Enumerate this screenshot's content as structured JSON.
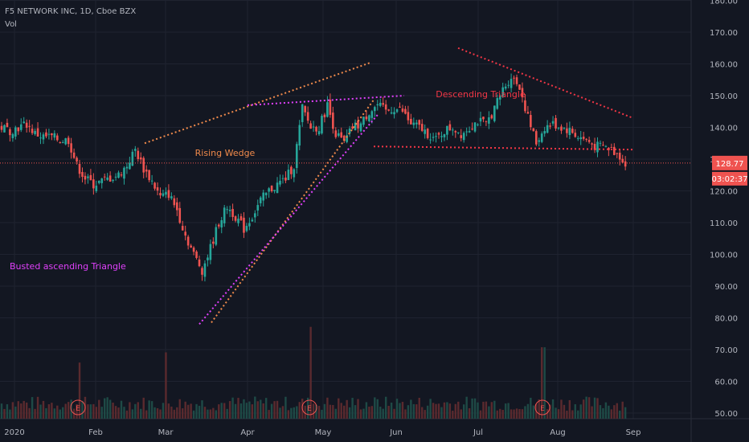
{
  "header": {
    "title": "F5 NETWORK INC, 1D, Cboe BZX",
    "volume_label": "Vol"
  },
  "price_axis": {
    "ticks": [
      "180.00",
      "170.00",
      "160.00",
      "150.00",
      "140.00",
      "130.00",
      "120.00",
      "110.00",
      "100.00",
      "90.00",
      "80.00",
      "70.00",
      "60.00",
      "50.00"
    ],
    "current_price": "128.77",
    "countdown": "03:02:37"
  },
  "time_axis": {
    "labels": [
      "2020",
      "Feb",
      "Mar",
      "Apr",
      "May",
      "Jun",
      "Jul",
      "Aug",
      "Sep"
    ]
  },
  "annotations": {
    "rising_wedge": "Rising Wedge",
    "descending_triangle": "Descending Triangle",
    "busted_triangle": "Busted ascending Triangle"
  },
  "earnings_markers": [
    "E",
    "E",
    "E"
  ],
  "colors": {
    "background": "#131722",
    "grid": "#1f2330",
    "up": "#26a69a",
    "down": "#ef5350",
    "orange": "#f08a4b",
    "magenta": "#e040fb",
    "red_line": "#f23645",
    "axis_text": "#b2b5be"
  },
  "chart_data": {
    "type": "candlestick",
    "title": "F5 NETWORK INC, 1D, Cboe BZX",
    "ylim": [
      50,
      180
    ],
    "y_ticks": [
      50,
      60,
      70,
      80,
      90,
      100,
      110,
      120,
      130,
      140,
      150,
      160,
      170,
      180
    ],
    "x_labels": [
      "2020",
      "Feb",
      "Mar",
      "Apr",
      "May",
      "Jun",
      "Jul",
      "Aug",
      "Sep"
    ],
    "last_price": 128.77,
    "close_path": [
      [
        0,
        140
      ],
      [
        3,
        139
      ],
      [
        6,
        140
      ],
      [
        9,
        141
      ],
      [
        12,
        138
      ],
      [
        15,
        137
      ],
      [
        18,
        137
      ],
      [
        21,
        136
      ],
      [
        24,
        136
      ],
      [
        27,
        128
      ],
      [
        30,
        124
      ],
      [
        33,
        122
      ],
      [
        36,
        123
      ],
      [
        39,
        124
      ],
      [
        42,
        125
      ],
      [
        45,
        128
      ],
      [
        48,
        133
      ],
      [
        51,
        127
      ],
      [
        54,
        123
      ],
      [
        57,
        118
      ],
      [
        60,
        119
      ],
      [
        63,
        114
      ],
      [
        66,
        106
      ],
      [
        69,
        100
      ],
      [
        72,
        95
      ],
      [
        75,
        102
      ],
      [
        78,
        110
      ],
      [
        81,
        115
      ],
      [
        84,
        112
      ],
      [
        87,
        108
      ],
      [
        90,
        112
      ],
      [
        93,
        117
      ],
      [
        96,
        120
      ],
      [
        99,
        122
      ],
      [
        102,
        124
      ],
      [
        105,
        128
      ],
      [
        108,
        146
      ],
      [
        111,
        140
      ],
      [
        114,
        140
      ],
      [
        117,
        147
      ],
      [
        120,
        138
      ],
      [
        123,
        135
      ],
      [
        126,
        140
      ],
      [
        129,
        141
      ],
      [
        132,
        145
      ],
      [
        135,
        147
      ],
      [
        138,
        145
      ],
      [
        141,
        146
      ],
      [
        144,
        145
      ],
      [
        147,
        141
      ],
      [
        150,
        140
      ],
      [
        153,
        138
      ],
      [
        156,
        136
      ],
      [
        159,
        139
      ],
      [
        162,
        140
      ],
      [
        165,
        138
      ],
      [
        168,
        140
      ],
      [
        171,
        142
      ],
      [
        174,
        141
      ],
      [
        177,
        146
      ],
      [
        180,
        152
      ],
      [
        183,
        156
      ],
      [
        186,
        153
      ],
      [
        189,
        143
      ],
      [
        192,
        135
      ],
      [
        195,
        140
      ],
      [
        198,
        141
      ],
      [
        201,
        140
      ],
      [
        204,
        139
      ],
      [
        207,
        137
      ],
      [
        210,
        136
      ],
      [
        213,
        134
      ],
      [
        216,
        134
      ],
      [
        219,
        133
      ],
      [
        222,
        131
      ],
      [
        224,
        128.77
      ]
    ],
    "volume_spikes": [
      {
        "month": "Jan",
        "relative": 0.55
      },
      {
        "month": "Mar",
        "relative": 0.65
      },
      {
        "month": "Apr",
        "relative": 0.9
      },
      {
        "month": "Jul",
        "relative": 0.7
      }
    ],
    "trendlines": [
      {
        "name": "Rising Wedge upper",
        "from": [
          "Feb",
          135
        ],
        "to": [
          "May",
          160.5
        ]
      },
      {
        "name": "Rising Wedge lower",
        "from": [
          "Mar",
          78.5
        ],
        "to": [
          "May",
          149
        ]
      },
      {
        "name": "Busted ascending Triangle top",
        "from": [
          "Apr",
          147
        ],
        "to": [
          "Jun",
          150
        ]
      },
      {
        "name": "Busted ascending Triangle base",
        "from": [
          "Mar",
          78
        ],
        "to": [
          "May",
          144
        ]
      },
      {
        "name": "Descending Triangle top",
        "from": [
          "Jun",
          165
        ],
        "to": [
          "Sep",
          143
        ]
      },
      {
        "name": "Descending Triangle base",
        "from": [
          "May",
          134
        ],
        "to": [
          "Sep",
          133
        ]
      }
    ]
  }
}
